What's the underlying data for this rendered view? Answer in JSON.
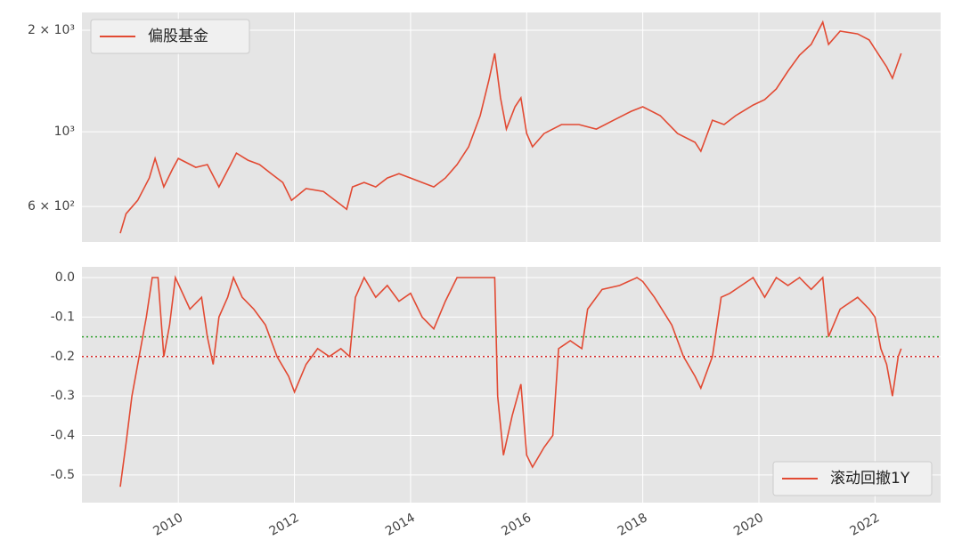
{
  "chart_data": [
    {
      "type": "line",
      "yscale": "log",
      "legend": "upper left",
      "grid": true,
      "ylim": [
        471,
        2258
      ],
      "yticks": [
        {
          "value": 600,
          "label": "6 × 10²"
        },
        {
          "value": 1000,
          "label": "10³"
        },
        {
          "value": 2000,
          "label": "2 × 10³"
        }
      ],
      "xlim": [
        2008.34,
        2023.13
      ],
      "xticks": [
        2010,
        2012,
        2014,
        2016,
        2018,
        2020,
        2022
      ],
      "x": [
        2009.0,
        2009.1,
        2009.3,
        2009.5,
        2009.6,
        2009.75,
        2009.9,
        2010.0,
        2010.3,
        2010.5,
        2010.7,
        2010.9,
        2011.0,
        2011.2,
        2011.4,
        2011.6,
        2011.8,
        2011.95,
        2012.2,
        2012.5,
        2012.7,
        2012.9,
        2013.0,
        2013.2,
        2013.4,
        2013.6,
        2013.8,
        2014.0,
        2014.2,
        2014.4,
        2014.6,
        2014.8,
        2015.0,
        2015.2,
        2015.35,
        2015.45,
        2015.55,
        2015.65,
        2015.8,
        2015.9,
        2016.0,
        2016.1,
        2016.3,
        2016.6,
        2016.9,
        2017.2,
        2017.5,
        2017.8,
        2018.0,
        2018.3,
        2018.6,
        2018.9,
        2019.0,
        2019.2,
        2019.4,
        2019.6,
        2019.9,
        2020.1,
        2020.3,
        2020.5,
        2020.7,
        2020.9,
        2021.1,
        2021.2,
        2021.4,
        2021.7,
        2021.9,
        2022.0,
        2022.2,
        2022.3,
        2022.45
      ],
      "series": [
        {
          "name": "偏股基金",
          "color": "#e24a33",
          "values": [
            500,
            571,
            626,
            729,
            833,
            686,
            775,
            833,
            784,
            799,
            686,
            799,
            864,
            823,
            799,
            751,
            707,
            626,
            678,
            665,
            626,
            589,
            686,
            707,
            686,
            729,
            751,
            729,
            707,
            686,
            729,
            799,
            902,
            1116,
            1423,
            1708,
            1260,
            1018,
            1186,
            1260,
            988,
            902,
            988,
            1050,
            1050,
            1018,
            1082,
            1150,
            1186,
            1116,
            988,
            930,
            875,
            1082,
            1050,
            1116,
            1200,
            1245,
            1339,
            1512,
            1687,
            1815,
            2113,
            1815,
            1987,
            1950,
            1871,
            1759,
            1558,
            1440,
            1708
          ]
        }
      ]
    },
    {
      "type": "line",
      "legend": "lower right",
      "grid": true,
      "ylim": [
        -0.57,
        0.027
      ],
      "yticks": [
        {
          "value": 0,
          "label": "0.0"
        },
        -0.1,
        -0.2,
        -0.3,
        -0.4,
        -0.5
      ],
      "xlim": [
        2008.34,
        2023.13
      ],
      "xticks": [
        2010,
        2012,
        2014,
        2016,
        2018,
        2020,
        2022
      ],
      "hlines": [
        {
          "value": -0.15,
          "color": "#2ca02c"
        },
        {
          "value": -0.2,
          "color": "#d62728"
        }
      ],
      "x": [
        2009.0,
        2009.1,
        2009.2,
        2009.3,
        2009.45,
        2009.55,
        2009.65,
        2009.75,
        2009.85,
        2009.95,
        2010.2,
        2010.4,
        2010.5,
        2010.6,
        2010.7,
        2010.85,
        2010.95,
        2011.1,
        2011.3,
        2011.5,
        2011.7,
        2011.9,
        2012.0,
        2012.2,
        2012.4,
        2012.6,
        2012.8,
        2012.95,
        2013.05,
        2013.2,
        2013.4,
        2013.6,
        2013.8,
        2014.0,
        2014.2,
        2014.4,
        2014.6,
        2014.8,
        2015.0,
        2015.3,
        2015.45,
        2015.5,
        2015.6,
        2015.75,
        2015.9,
        2016.0,
        2016.1,
        2016.3,
        2016.45,
        2016.55,
        2016.75,
        2016.95,
        2017.05,
        2017.3,
        2017.6,
        2017.9,
        2018.0,
        2018.2,
        2018.5,
        2018.7,
        2018.9,
        2019.0,
        2019.2,
        2019.35,
        2019.5,
        2019.7,
        2019.9,
        2020.1,
        2020.3,
        2020.5,
        2020.7,
        2020.9,
        2021.1,
        2021.2,
        2021.4,
        2021.7,
        2021.9,
        2022.0,
        2022.1,
        2022.2,
        2022.3,
        2022.4,
        2022.45
      ],
      "series": [
        {
          "name": "滚动回撤1Y",
          "color": "#e24a33",
          "values": [
            -0.53,
            -0.42,
            -0.3,
            -0.22,
            -0.1,
            0,
            0,
            -0.2,
            -0.12,
            0,
            -0.08,
            -0.05,
            -0.15,
            -0.22,
            -0.1,
            -0.05,
            0,
            -0.05,
            -0.08,
            -0.12,
            -0.2,
            -0.25,
            -0.29,
            -0.22,
            -0.18,
            -0.2,
            -0.18,
            -0.2,
            -0.05,
            0,
            -0.05,
            -0.02,
            -0.06,
            -0.04,
            -0.1,
            -0.13,
            -0.06,
            0,
            0,
            0,
            0,
            -0.3,
            -0.45,
            -0.35,
            -0.27,
            -0.45,
            -0.48,
            -0.43,
            -0.4,
            -0.18,
            -0.16,
            -0.18,
            -0.08,
            -0.03,
            -0.02,
            0,
            -0.01,
            -0.05,
            -0.12,
            -0.2,
            -0.25,
            -0.28,
            -0.2,
            -0.05,
            -0.04,
            -0.02,
            0,
            -0.05,
            0,
            -0.02,
            0,
            -0.03,
            0,
            -0.15,
            -0.08,
            -0.05,
            -0.08,
            -0.1,
            -0.18,
            -0.22,
            -0.3,
            -0.2,
            -0.18
          ]
        }
      ]
    }
  ]
}
